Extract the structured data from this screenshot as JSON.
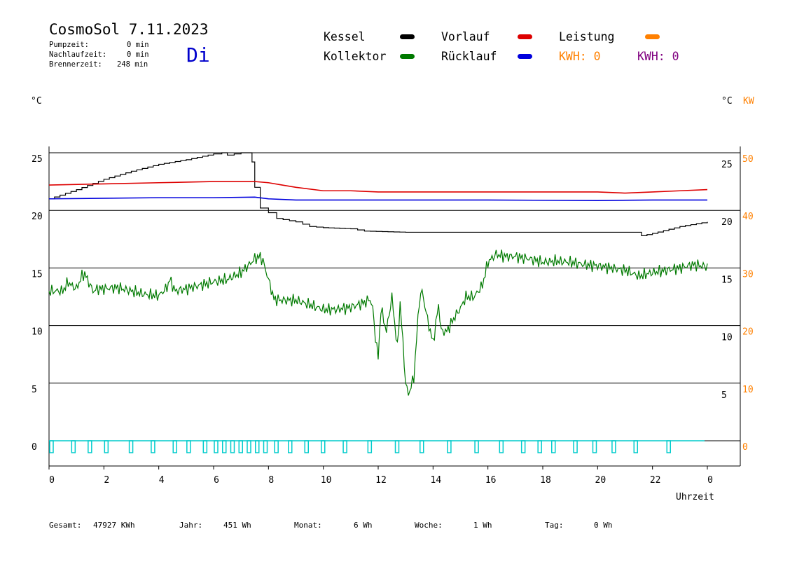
{
  "header": {
    "title": "CosmoSol 7.11.2023",
    "pumpzeit_label": "Pumpzeit:",
    "pumpzeit_value": "0 min",
    "nachlaufzeit_label": "Nachlaufzeit:",
    "nachlaufzeit_value": "0 min",
    "brennerzeit_label": "Brennerzeit:",
    "brennerzeit_value": "248 min",
    "day": "Di"
  },
  "legend": {
    "kessel": "Kessel",
    "kollektor": "Kollektor",
    "vorlauf": "Vorlauf",
    "ruecklauf": "Rücklauf",
    "leistung": "Leistung",
    "kwh_orange": "KWH: 0",
    "kwh_purple": "KWH: 0"
  },
  "colors": {
    "kessel": "#000000",
    "kollektor": "#007a00",
    "vorlauf": "#dd0000",
    "ruecklauf": "#0000dd",
    "leistung": "#ff8000",
    "kwh_purple": "#800080",
    "pump": "#00cccc",
    "grid": "#000000"
  },
  "axes": {
    "left_unit": "°C",
    "right_unit": "°C",
    "right_unit2": "KW",
    "xlabel": "Uhrzeit"
  },
  "footer": {
    "gesamt_label": "Gesamt:",
    "gesamt_value": "47927 KWh",
    "jahr_label": "Jahr:",
    "jahr_value": "451 Wh",
    "monat_label": "Monat:",
    "monat_value": "6 Wh",
    "woche_label": "Woche:",
    "woche_value": "1 Wh",
    "tag_label": "Tag:",
    "tag_value": "0 Wh"
  },
  "chart_data": {
    "type": "line",
    "xlabel": "Uhrzeit",
    "ylabel": "°C",
    "xlim": [
      0,
      24
    ],
    "ylim": [
      -1.5,
      26
    ],
    "y2lim": [
      -3,
      52
    ],
    "x_ticks": [
      "0",
      "2",
      "4",
      "6",
      "8",
      "10",
      "12",
      "14",
      "16",
      "18",
      "20",
      "22",
      "0"
    ],
    "y_ticks_left": [
      0,
      5,
      10,
      15,
      20,
      25
    ],
    "y_ticks_right_temp": [
      5,
      10,
      15,
      20,
      25
    ],
    "y_ticks_right_kw": [
      0,
      10,
      20,
      30,
      40,
      50
    ],
    "grid": true,
    "series": [
      {
        "name": "Kessel",
        "color": "#000000",
        "x": [
          0,
          1,
          2,
          3,
          4,
          5,
          6,
          6.3,
          6.5,
          7.0,
          7.2,
          7.4,
          7.5,
          7.7,
          8.0,
          8.3,
          9.0,
          9.5,
          10.0,
          11.0,
          11.5,
          13,
          15,
          17,
          19,
          21.0,
          21.3,
          21.6,
          22.0,
          23.0,
          24.0
        ],
        "y": [
          21.0,
          21.8,
          22.7,
          23.4,
          24.0,
          24.4,
          24.9,
          25.0,
          24.8,
          25.0,
          25.0,
          24.2,
          22.0,
          20.2,
          19.8,
          19.3,
          19.0,
          18.6,
          18.5,
          18.4,
          18.2,
          18.1,
          18.1,
          18.1,
          18.1,
          18.1,
          18.1,
          17.8,
          18.0,
          18.6,
          19.0
        ]
      },
      {
        "name": "Vorlauf",
        "color": "#dd0000",
        "x": [
          0,
          2,
          4,
          6,
          7.5,
          8.0,
          8.5,
          9.0,
          10.0,
          11.0,
          12.0,
          16,
          20,
          21.0,
          22.0,
          23.0,
          24.0
        ],
        "y": [
          22.2,
          22.3,
          22.4,
          22.5,
          22.5,
          22.4,
          22.2,
          22.0,
          21.7,
          21.7,
          21.6,
          21.6,
          21.6,
          21.5,
          21.6,
          21.7,
          21.8
        ]
      },
      {
        "name": "Rücklauf",
        "color": "#0000dd",
        "x": [
          0,
          2,
          4,
          6,
          7.5,
          8.0,
          9.0,
          10.0,
          12.0,
          16,
          20,
          22,
          24
        ],
        "y": [
          21.0,
          21.05,
          21.1,
          21.1,
          21.15,
          21.0,
          20.9,
          20.9,
          20.9,
          20.9,
          20.85,
          20.9,
          20.9
        ]
      },
      {
        "name": "Kollektor",
        "color": "#007a00",
        "x": [
          0,
          0.5,
          0.7,
          0.8,
          1.0,
          1.2,
          1.3,
          1.6,
          1.8,
          2.0,
          2.5,
          3.0,
          3.5,
          4.0,
          4.3,
          4.4,
          4.6,
          5.0,
          5.5,
          6.0,
          6.5,
          7.0,
          7.3,
          7.5,
          7.7,
          7.8,
          8.0,
          8.2,
          8.5,
          9.0,
          9.5,
          10.0,
          10.5,
          11.0,
          11.5,
          11.7,
          11.8,
          11.9,
          12.0,
          12.1,
          12.3,
          12.5,
          12.7,
          12.8,
          13.0,
          13.1,
          13.3,
          13.5,
          13.6,
          13.8,
          14.0,
          14.2,
          14.3,
          14.5,
          14.8,
          15.0,
          15.2,
          15.5,
          15.8,
          16.0,
          16.3,
          16.6,
          17.0,
          17.5,
          18.0,
          18.5,
          19.0,
          19.5,
          20.0,
          20.5,
          21.0,
          21.5,
          22.0,
          22.5,
          23.0,
          23.5,
          24.0
        ],
        "y": [
          13.0,
          13.0,
          13.8,
          13.5,
          13.2,
          14.3,
          14.5,
          13.0,
          13.2,
          13.2,
          13.3,
          13.0,
          12.7,
          12.6,
          13.3,
          14.0,
          13.0,
          13.2,
          13.5,
          13.8,
          14.0,
          14.6,
          15.3,
          15.8,
          16.0,
          15.6,
          14.0,
          12.3,
          12.2,
          12.2,
          11.8,
          11.4,
          11.4,
          11.6,
          12.0,
          12.3,
          11.5,
          9.0,
          7.2,
          11.5,
          9.5,
          12.5,
          8.0,
          12.0,
          5.0,
          4.0,
          5.5,
          12.2,
          13.0,
          10.5,
          8.5,
          11.8,
          9.5,
          9.5,
          10.8,
          11.5,
          12.5,
          12.5,
          13.5,
          15.5,
          16.2,
          16.0,
          16.0,
          15.8,
          15.5,
          15.6,
          15.5,
          15.3,
          15.2,
          15.0,
          14.8,
          14.3,
          14.6,
          14.8,
          15.0,
          15.3,
          15.1
        ]
      }
    ],
    "pump_pulses_hours": [
      0.0,
      0.8,
      1.4,
      2.0,
      2.9,
      3.7,
      4.5,
      5.0,
      5.6,
      6.0,
      6.3,
      6.6,
      6.9,
      7.2,
      7.5,
      7.8,
      8.2,
      8.7,
      9.3,
      9.9,
      10.7,
      11.6,
      12.6,
      13.5,
      14.5,
      15.5,
      16.4,
      17.2,
      17.8,
      18.3,
      19.1,
      19.8,
      20.5,
      21.3,
      22.5
    ]
  }
}
